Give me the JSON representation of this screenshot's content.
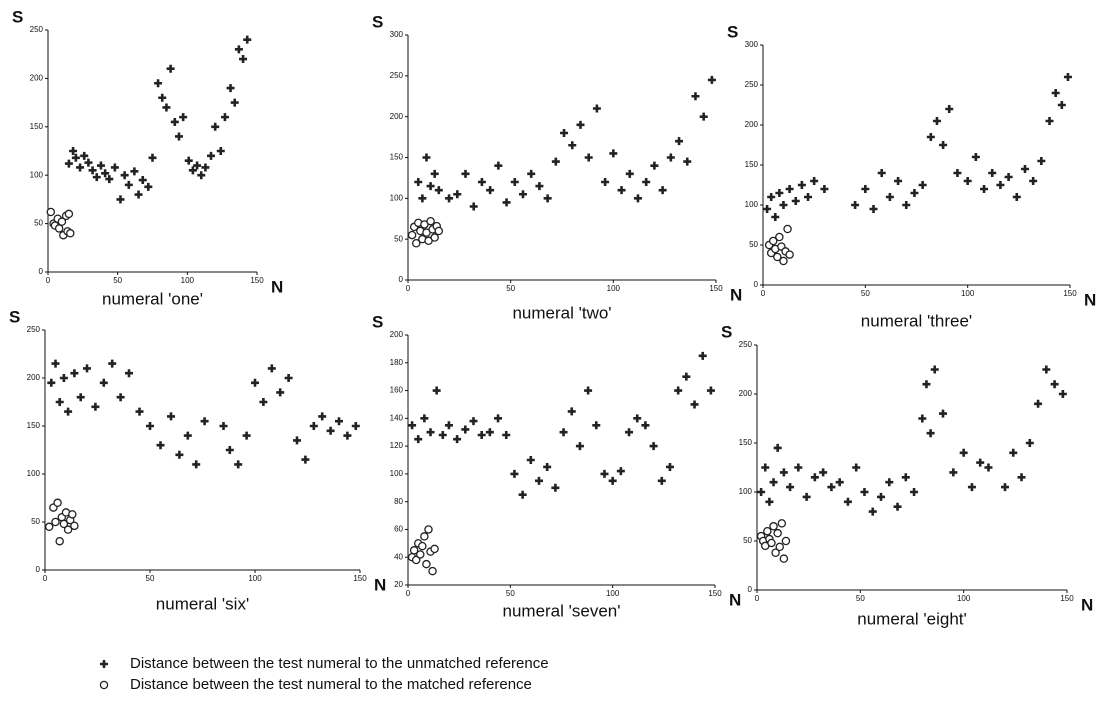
{
  "chart_data": [
    {
      "type": "scatter",
      "title": "numeral 'one'",
      "xlabel": "N",
      "ylabel": "S",
      "xlim": [
        0,
        150
      ],
      "xticks": [
        0,
        50,
        100,
        150
      ],
      "ylim": [
        0,
        250
      ],
      "yticks": [
        0,
        50,
        100,
        150,
        200,
        250
      ],
      "series": [
        {
          "color": "#222222",
          "marker": "plus",
          "x": [
            15,
            18,
            20,
            23,
            26,
            29,
            32,
            35,
            38,
            41,
            44,
            48,
            52,
            55,
            58,
            62,
            65,
            68,
            72,
            75,
            79,
            82,
            85,
            88,
            91,
            94,
            97,
            101,
            104,
            107,
            110,
            113,
            117,
            120,
            124,
            127,
            131,
            134,
            137,
            140,
            143
          ],
          "values": [
            112,
            125,
            118,
            108,
            120,
            113,
            105,
            98,
            110,
            102,
            96,
            108,
            75,
            100,
            90,
            104,
            80,
            95,
            88,
            118,
            195,
            180,
            170,
            210,
            155,
            140,
            160,
            115,
            105,
            110,
            100,
            108,
            120,
            150,
            125,
            160,
            190,
            175,
            230,
            220,
            240
          ]
        },
        {
          "color": "#222222",
          "marker": "circle",
          "x": [
            2,
            4,
            5,
            7,
            8,
            10,
            11,
            13,
            14,
            15,
            16
          ],
          "values": [
            62,
            50,
            48,
            55,
            45,
            52,
            38,
            58,
            42,
            60,
            40
          ]
        }
      ]
    },
    {
      "type": "scatter",
      "title": "numeral 'two'",
      "xlabel": "N",
      "ylabel": "S",
      "xlim": [
        0,
        150
      ],
      "xticks": [
        0,
        50,
        100,
        150
      ],
      "ylim": [
        0,
        300
      ],
      "yticks": [
        0,
        50,
        100,
        150,
        200,
        250,
        300
      ],
      "series": [
        {
          "color": "#222222",
          "marker": "plus",
          "x": [
            5,
            7,
            9,
            11,
            13,
            15,
            20,
            24,
            28,
            32,
            36,
            40,
            44,
            48,
            52,
            56,
            60,
            64,
            68,
            72,
            76,
            80,
            84,
            88,
            92,
            96,
            100,
            104,
            108,
            112,
            116,
            120,
            124,
            128,
            132,
            136,
            140,
            144,
            148
          ],
          "values": [
            120,
            100,
            150,
            115,
            130,
            110,
            100,
            105,
            130,
            90,
            120,
            110,
            140,
            95,
            120,
            105,
            130,
            115,
            100,
            145,
            180,
            165,
            190,
            150,
            210,
            120,
            155,
            110,
            130,
            100,
            120,
            140,
            110,
            150,
            170,
            145,
            225,
            200,
            245
          ]
        },
        {
          "color": "#222222",
          "marker": "circle",
          "x": [
            2,
            3,
            4,
            5,
            6,
            7,
            8,
            9,
            10,
            11,
            12,
            13,
            14,
            15
          ],
          "values": [
            55,
            65,
            45,
            70,
            60,
            50,
            68,
            58,
            48,
            72,
            62,
            52,
            66,
            60
          ]
        }
      ]
    },
    {
      "type": "scatter",
      "title": "numeral 'three'",
      "xlabel": "N",
      "ylabel": "S",
      "xlim": [
        0,
        150
      ],
      "xticks": [
        0,
        50,
        100,
        150
      ],
      "ylim": [
        0,
        300
      ],
      "yticks": [
        0,
        50,
        100,
        150,
        200,
        250,
        300
      ],
      "series": [
        {
          "color": "#222222",
          "marker": "plus",
          "x": [
            2,
            4,
            6,
            8,
            10,
            13,
            16,
            19,
            22,
            25,
            30,
            45,
            50,
            54,
            58,
            62,
            66,
            70,
            74,
            78,
            82,
            85,
            88,
            91,
            95,
            100,
            104,
            108,
            112,
            116,
            120,
            124,
            128,
            132,
            136,
            140,
            143,
            146,
            149
          ],
          "values": [
            95,
            110,
            85,
            115,
            100,
            120,
            105,
            125,
            110,
            130,
            120,
            100,
            120,
            95,
            140,
            110,
            130,
            100,
            115,
            125,
            185,
            205,
            175,
            220,
            140,
            130,
            160,
            120,
            140,
            125,
            135,
            110,
            145,
            130,
            155,
            205,
            240,
            225,
            260
          ]
        },
        {
          "color": "#222222",
          "marker": "circle",
          "x": [
            3,
            4,
            5,
            6,
            7,
            8,
            9,
            10,
            11,
            12,
            13
          ],
          "values": [
            50,
            40,
            55,
            45,
            35,
            60,
            48,
            30,
            42,
            70,
            38
          ]
        }
      ]
    },
    {
      "type": "scatter",
      "title": "numeral 'six'",
      "xlabel": "N",
      "ylabel": "S",
      "xlim": [
        0,
        150
      ],
      "xticks": [
        0,
        50,
        100,
        150
      ],
      "ylim": [
        0,
        250
      ],
      "yticks": [
        0,
        50,
        100,
        150,
        200,
        250
      ],
      "series": [
        {
          "color": "#222222",
          "marker": "plus",
          "x": [
            3,
            5,
            7,
            9,
            11,
            14,
            17,
            20,
            24,
            28,
            32,
            36,
            40,
            45,
            50,
            55,
            60,
            64,
            68,
            72,
            76,
            85,
            88,
            92,
            96,
            100,
            104,
            108,
            112,
            116,
            120,
            124,
            128,
            132,
            136,
            140,
            144,
            148
          ],
          "values": [
            195,
            215,
            175,
            200,
            165,
            205,
            180,
            210,
            170,
            195,
            215,
            180,
            205,
            165,
            150,
            130,
            160,
            120,
            140,
            110,
            155,
            150,
            125,
            110,
            140,
            195,
            175,
            210,
            185,
            200,
            135,
            115,
            150,
            160,
            145,
            155,
            140,
            150
          ]
        },
        {
          "color": "#222222",
          "marker": "circle",
          "x": [
            2,
            4,
            5,
            6,
            7,
            8,
            9,
            10,
            11,
            12,
            13,
            14
          ],
          "values": [
            45,
            65,
            50,
            70,
            30,
            55,
            48,
            60,
            42,
            52,
            58,
            46
          ]
        }
      ]
    },
    {
      "type": "scatter",
      "title": "numeral 'seven'",
      "xlabel": "N",
      "ylabel": "S",
      "xlim": [
        0,
        150
      ],
      "xticks": [
        0,
        50,
        100,
        150
      ],
      "ylim": [
        20,
        200
      ],
      "yticks": [
        20,
        40,
        60,
        80,
        100,
        120,
        140,
        160,
        180,
        200
      ],
      "series": [
        {
          "color": "#222222",
          "marker": "plus",
          "x": [
            2,
            5,
            8,
            11,
            14,
            17,
            20,
            24,
            28,
            32,
            36,
            40,
            44,
            48,
            52,
            56,
            60,
            64,
            68,
            72,
            76,
            80,
            84,
            88,
            92,
            96,
            100,
            104,
            108,
            112,
            116,
            120,
            124,
            128,
            132,
            136,
            140,
            144,
            148
          ],
          "values": [
            135,
            125,
            140,
            130,
            160,
            128,
            135,
            125,
            132,
            138,
            128,
            130,
            140,
            128,
            100,
            85,
            110,
            95,
            105,
            90,
            130,
            145,
            120,
            160,
            135,
            100,
            95,
            102,
            130,
            140,
            135,
            120,
            95,
            105,
            160,
            170,
            150,
            185,
            160
          ]
        },
        {
          "color": "#222222",
          "marker": "circle",
          "x": [
            2,
            3,
            4,
            5,
            6,
            7,
            8,
            9,
            10,
            11,
            12,
            13
          ],
          "values": [
            40,
            45,
            38,
            50,
            42,
            48,
            55,
            35,
            60,
            44,
            30,
            46
          ]
        }
      ]
    },
    {
      "type": "scatter",
      "title": "numeral 'eight'",
      "xlabel": "N",
      "ylabel": "S",
      "xlim": [
        0,
        150
      ],
      "xticks": [
        0,
        50,
        100,
        150
      ],
      "ylim": [
        0,
        250
      ],
      "yticks": [
        0,
        50,
        100,
        150,
        200,
        250
      ],
      "series": [
        {
          "color": "#222222",
          "marker": "plus",
          "x": [
            2,
            4,
            6,
            8,
            10,
            13,
            16,
            20,
            24,
            28,
            32,
            36,
            40,
            44,
            48,
            52,
            56,
            60,
            64,
            68,
            72,
            76,
            80,
            82,
            84,
            86,
            90,
            95,
            100,
            104,
            108,
            112,
            120,
            124,
            128,
            132,
            136,
            140,
            144,
            148
          ],
          "values": [
            100,
            125,
            90,
            110,
            145,
            120,
            105,
            125,
            95,
            115,
            120,
            105,
            110,
            90,
            125,
            100,
            80,
            95,
            110,
            85,
            115,
            100,
            175,
            210,
            160,
            225,
            180,
            120,
            140,
            105,
            130,
            125,
            105,
            140,
            115,
            150,
            190,
            225,
            210,
            200
          ]
        },
        {
          "color": "#222222",
          "marker": "circle",
          "x": [
            2,
            3,
            4,
            5,
            6,
            7,
            8,
            9,
            10,
            11,
            12,
            13,
            14
          ],
          "values": [
            55,
            50,
            45,
            60,
            52,
            48,
            65,
            38,
            58,
            44,
            68,
            32,
            50
          ]
        }
      ]
    }
  ],
  "legend": {
    "entries": [
      "Distance between the test numeral to the unmatched reference",
      "Distance between the test numeral to the matched reference"
    ]
  }
}
